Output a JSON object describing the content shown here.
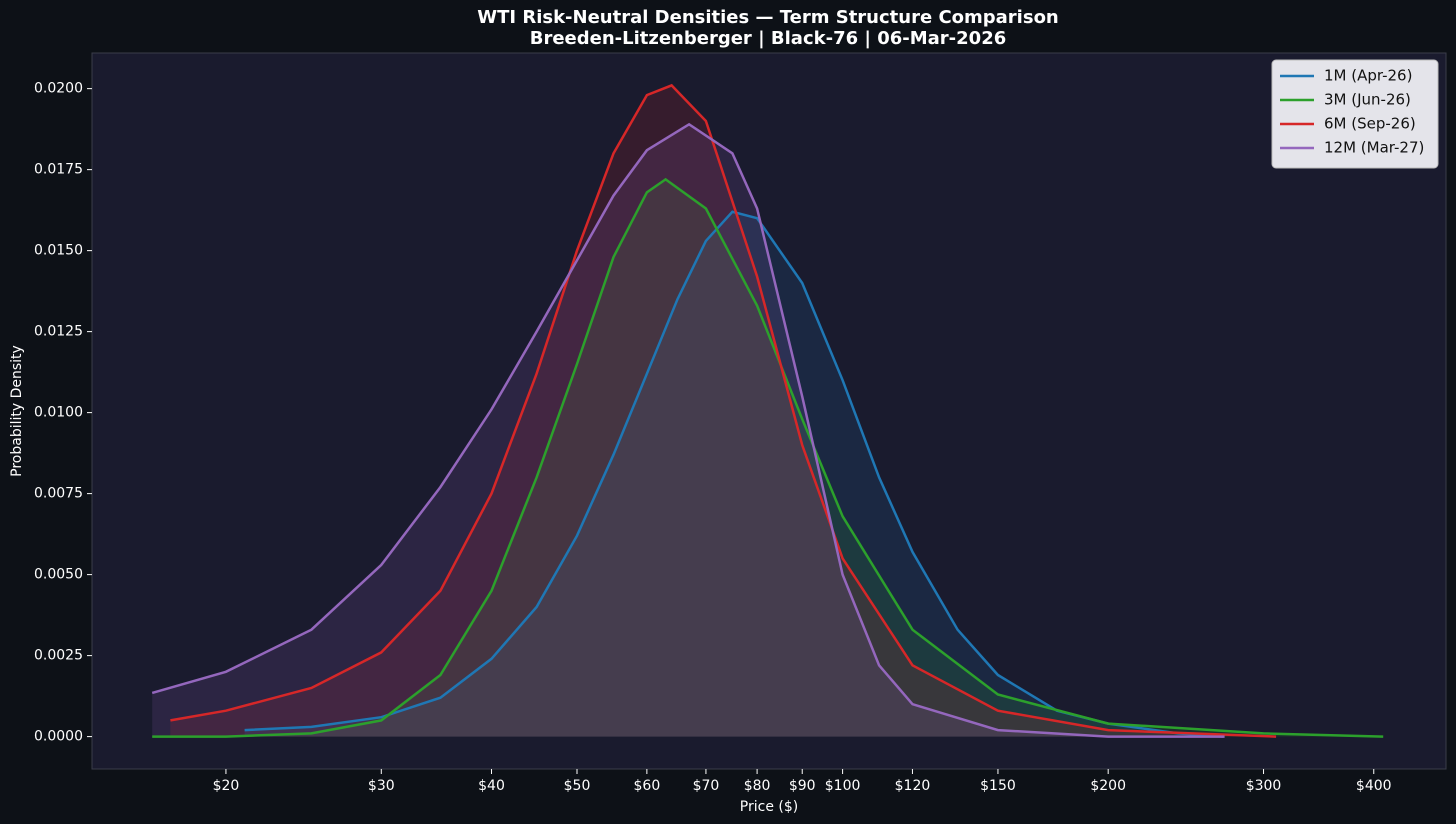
{
  "chart_data": {
    "type": "density",
    "title": "WTI Risk-Neutral Densities — Term Structure Comparison",
    "subtitle": "Breeden-Litzenberger | Black-76 | 06-Mar-2026",
    "x_label": "Price ($)",
    "y_label": "Probability Density",
    "x_scale": "log",
    "grid": false,
    "legend_position": "upper right",
    "xlim": [
      14.1,
      483
    ],
    "ylim": [
      -0.001,
      0.0211
    ],
    "xticks": [
      {
        "value": 20,
        "label": "$20"
      },
      {
        "value": 30,
        "label": "$30"
      },
      {
        "value": 40,
        "label": "$40"
      },
      {
        "value": 50,
        "label": "$50"
      },
      {
        "value": 60,
        "label": "$60"
      },
      {
        "value": 70,
        "label": "$70"
      },
      {
        "value": 80,
        "label": "$80"
      },
      {
        "value": 90,
        "label": "$90"
      },
      {
        "value": 100,
        "label": "$100"
      },
      {
        "value": 120,
        "label": "$120"
      },
      {
        "value": 150,
        "label": "$150"
      },
      {
        "value": 200,
        "label": "$200"
      },
      {
        "value": 300,
        "label": "$300"
      },
      {
        "value": 400,
        "label": "$400"
      }
    ],
    "yticks": [
      {
        "value": 0,
        "label": "0.0000"
      },
      {
        "value": 0.0025,
        "label": "0.0025"
      },
      {
        "value": 0.005,
        "label": "0.0050"
      },
      {
        "value": 0.0075,
        "label": "0.0075"
      },
      {
        "value": 0.01,
        "label": "0.0100"
      },
      {
        "value": 0.0125,
        "label": "0.0125"
      },
      {
        "value": 0.015,
        "label": "0.0150"
      },
      {
        "value": 0.0175,
        "label": "0.0175"
      },
      {
        "value": 0.02,
        "label": "0.0200"
      }
    ],
    "series": [
      {
        "name": "1M (Apr-26)",
        "color": "#1f77b4",
        "x": [
          21,
          25,
          30,
          35,
          40,
          45,
          50,
          55,
          60,
          65,
          70,
          75,
          80,
          90,
          100,
          110,
          120,
          135,
          150,
          175,
          200,
          240,
          270
        ],
        "values": [
          0.0002,
          0.0003,
          0.0006,
          0.0012,
          0.0024,
          0.004,
          0.0062,
          0.0087,
          0.0112,
          0.0135,
          0.0153,
          0.0162,
          0.016,
          0.014,
          0.011,
          0.008,
          0.0057,
          0.0033,
          0.0019,
          0.0008,
          0.0004,
          0.0001,
          0
        ]
      },
      {
        "name": "3M (Jun-26)",
        "color": "#2ca02c",
        "x": [
          16.5,
          20,
          25,
          30,
          35,
          40,
          45,
          50,
          55,
          60,
          63,
          70,
          80,
          90,
          100,
          120,
          150,
          200,
          300,
          410
        ],
        "values": [
          0,
          0,
          0.0001,
          0.0005,
          0.0019,
          0.0045,
          0.008,
          0.0115,
          0.0148,
          0.0168,
          0.0172,
          0.0163,
          0.0133,
          0.0098,
          0.0068,
          0.0033,
          0.0013,
          0.0004,
          0.0001,
          0
        ]
      },
      {
        "name": "6M (Sep-26)",
        "color": "#d62728",
        "x": [
          17.3,
          20,
          25,
          30,
          35,
          40,
          45,
          50,
          55,
          60,
          64,
          70,
          80,
          90,
          100,
          120,
          150,
          200,
          310
        ],
        "values": [
          0.0005,
          0.0008,
          0.0015,
          0.0026,
          0.0045,
          0.0075,
          0.0112,
          0.015,
          0.018,
          0.0198,
          0.0201,
          0.019,
          0.0142,
          0.009,
          0.0055,
          0.0022,
          0.0008,
          0.0002,
          0
        ]
      },
      {
        "name": "12M (Mar-27)",
        "color": "#9467bd",
        "x": [
          16.5,
          20,
          25,
          30,
          35,
          40,
          45,
          50,
          55,
          60,
          67,
          75,
          80,
          90,
          100,
          110,
          120,
          150,
          200,
          271
        ],
        "values": [
          0.00135,
          0.002,
          0.0033,
          0.0053,
          0.0077,
          0.0101,
          0.0125,
          0.0147,
          0.0167,
          0.0181,
          0.0189,
          0.018,
          0.0163,
          0.0105,
          0.005,
          0.0022,
          0.001,
          0.0002,
          0,
          0
        ]
      }
    ]
  }
}
